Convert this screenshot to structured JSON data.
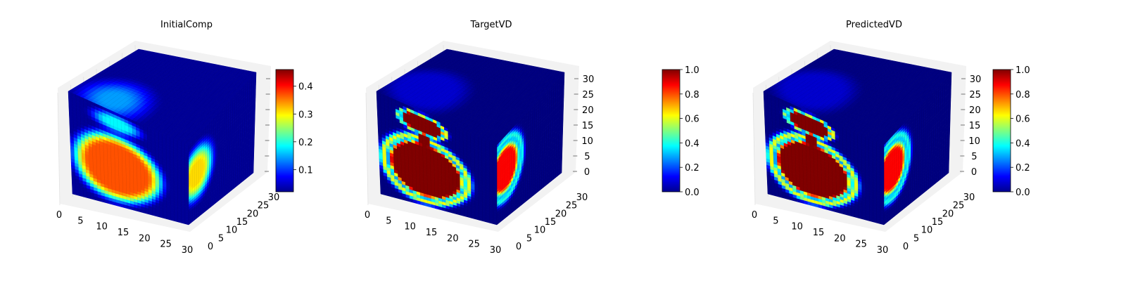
{
  "chart_data": [
    {
      "type": "heatmap",
      "title": "InitialComp",
      "x_ticks": [
        "0",
        "5",
        "10",
        "15",
        "20",
        "25",
        "30"
      ],
      "y_ticks": [
        "0",
        "5",
        "10",
        "15",
        "20",
        "25",
        "30"
      ],
      "z_ticks": [
        "0",
        "5",
        "10",
        "15",
        "20",
        "25",
        "30"
      ],
      "show_z_tick_labels": false,
      "colorbar": {
        "min": 0.02,
        "max": 0.46,
        "ticks": [
          "0.1",
          "0.2",
          "0.3",
          "0.4"
        ],
        "tick_values": [
          0.1,
          0.2,
          0.3,
          0.4
        ]
      },
      "volume": {
        "kind": "diffuse",
        "peak_value": 0.37,
        "background_value": 0.03
      }
    },
    {
      "type": "heatmap",
      "title": "TargetVD",
      "x_ticks": [
        "0",
        "5",
        "10",
        "15",
        "20",
        "25",
        "30"
      ],
      "y_ticks": [
        "0",
        "5",
        "10",
        "15",
        "20",
        "25",
        "30"
      ],
      "z_ticks": [
        "0",
        "5",
        "10",
        "15",
        "20",
        "25",
        "30"
      ],
      "show_z_tick_labels": true,
      "colorbar": {
        "min": 0.0,
        "max": 1.0,
        "ticks": [
          "0.0",
          "0.2",
          "0.4",
          "0.6",
          "0.8",
          "1.0"
        ],
        "tick_values": [
          0.0,
          0.2,
          0.4,
          0.6,
          0.8,
          1.0
        ]
      },
      "volume": {
        "kind": "sharp",
        "peak_value": 1.0,
        "background_value": 0.0
      }
    },
    {
      "type": "heatmap",
      "title": "PredictedVD",
      "x_ticks": [
        "0",
        "5",
        "10",
        "15",
        "20",
        "25",
        "30"
      ],
      "y_ticks": [
        "0",
        "5",
        "10",
        "15",
        "20",
        "25",
        "30"
      ],
      "z_ticks": [
        "0",
        "5",
        "10",
        "15",
        "20",
        "25",
        "30"
      ],
      "show_z_tick_labels": true,
      "colorbar": {
        "min": 0.0,
        "max": 1.0,
        "ticks": [
          "0.0",
          "0.2",
          "0.4",
          "0.6",
          "0.8",
          "1.0"
        ],
        "tick_values": [
          0.0,
          0.2,
          0.4,
          0.6,
          0.8,
          1.0
        ]
      },
      "volume": {
        "kind": "sharp",
        "peak_value": 1.0,
        "background_value": 0.0
      }
    }
  ],
  "colormap": "jet"
}
